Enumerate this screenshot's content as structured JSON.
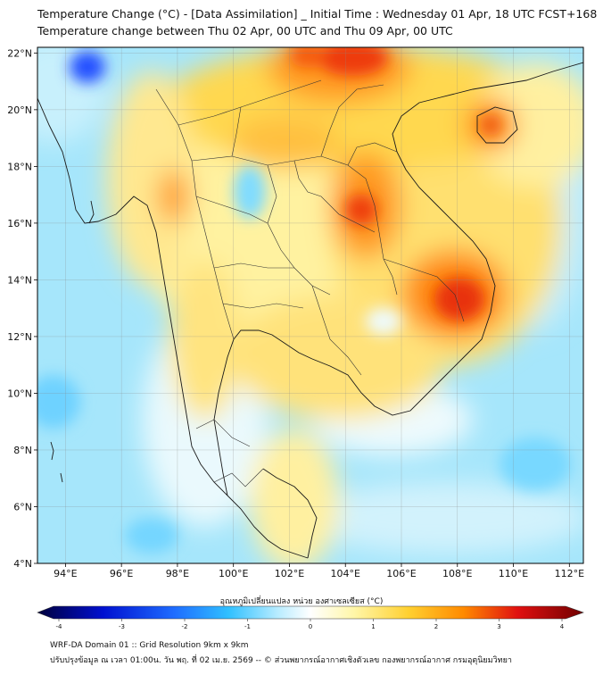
{
  "title_line1": "Temperature Change (°C) - [Data Assimilation] _ Initial Time : Wednesday 01 Apr, 18 UTC FCST+168",
  "title_line2": "Temperature change between Thu 02 Apr, 00 UTC and Thu 09 Apr, 00 UTC",
  "map": {
    "lon_range": [
      93,
      112.5
    ],
    "lat_range": [
      4,
      22.2
    ],
    "lon_ticks": [
      "94°E",
      "96°E",
      "98°E",
      "100°E",
      "102°E",
      "104°E",
      "106°E",
      "108°E",
      "110°E",
      "112°E"
    ],
    "lat_ticks": [
      "22°N",
      "20°N",
      "18°N",
      "16°N",
      "14°N",
      "12°N",
      "10°N",
      "8°N",
      "6°N",
      "4°N"
    ],
    "grid": true
  },
  "colorbar": {
    "title": "อุณหภูมิเปลี่ยนแปลง หน่วย องศาเซลเซียส (°C)",
    "ticks": [
      "-4",
      "-3",
      "-2",
      "-1",
      "0",
      "1",
      "2",
      "3",
      "4"
    ],
    "range": [
      -4,
      4
    ],
    "colors": [
      "#00003c",
      "#0010d0",
      "#1e6cff",
      "#30c0ff",
      "#b8ecff",
      "#ffffff",
      "#fff6a8",
      "#ffd030",
      "#ff8a00",
      "#e01010",
      "#700000"
    ]
  },
  "footer_line1": "WRF-DA Domain 01 :: Grid Resolution 9km x 9km",
  "footer_line2": "ปรับปรุงข้อมูล ณ เวลา 01:00น. วัน พฤ. ที่ 02 เม.ย. 2569 -- © ส่วนพยากรณ์อากาศเชิงตัวเลข กองพยากรณ์อากาศ กรมอุตุนิยมวิทยา"
}
